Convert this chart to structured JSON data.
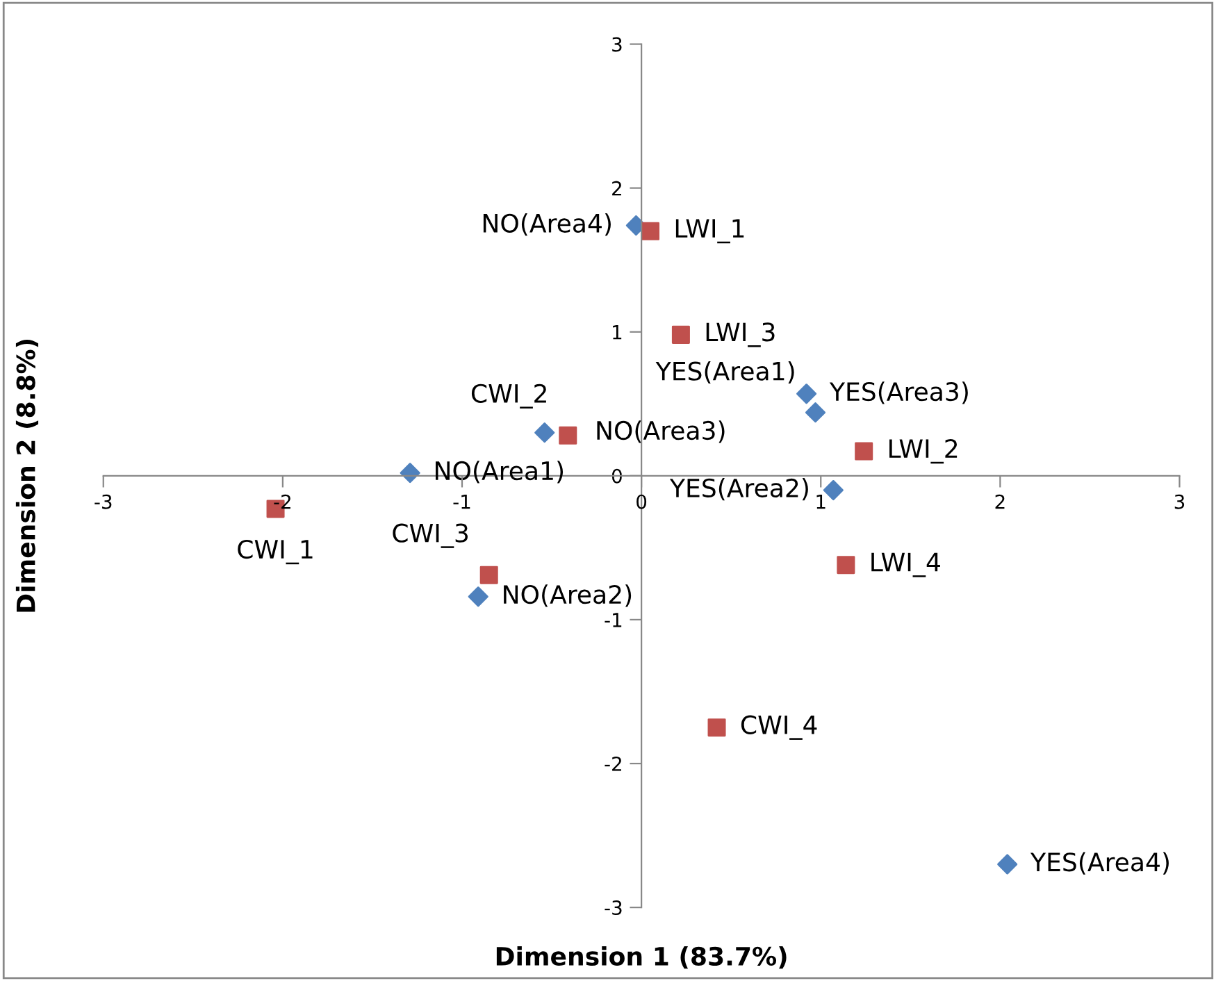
{
  "chart_data": {
    "type": "scatter",
    "xlabel": "Dimension 1 (83.7%)",
    "ylabel": "Dimension 2 (8.8%)",
    "xlim": [
      -3,
      3
    ],
    "ylim": [
      -3,
      3
    ],
    "xticks": [
      -3,
      -2,
      -1,
      0,
      1,
      2,
      3
    ],
    "yticks": [
      -3,
      -2,
      -1,
      0,
      1,
      2,
      3
    ],
    "grid": false,
    "legend": false,
    "series": [
      {
        "color": "#4f81bd",
        "marker": "diamond",
        "x": [
          -0.03,
          0.92,
          0.97,
          -0.54,
          -1.29,
          1.07,
          -0.91,
          2.04
        ],
        "values": [
          1.74,
          0.57,
          0.44,
          0.3,
          0.02,
          -0.1,
          -0.84,
          -2.7
        ]
      },
      {
        "color": "#c0504d",
        "marker": "square",
        "x": [
          0.05,
          0.22,
          -0.41,
          1.24,
          -2.04,
          -0.85,
          1.14,
          0.42
        ],
        "values": [
          1.7,
          0.98,
          0.28,
          0.17,
          -0.23,
          -0.69,
          -0.62,
          -1.75
        ]
      }
    ],
    "annotations": [
      {
        "text": "NO(Area4)",
        "x": -0.03,
        "y": 1.74
      },
      {
        "text": "YES(Area3)",
        "x": 0.92,
        "y": 0.57
      },
      {
        "text": "YES(Area1)",
        "x": 0.97,
        "y": 0.44
      },
      {
        "text": "NO(Area3)",
        "x": -0.54,
        "y": 0.3
      },
      {
        "text": "NO(Area1)",
        "x": -1.29,
        "y": 0.02
      },
      {
        "text": "YES(Area2)",
        "x": 1.07,
        "y": -0.1
      },
      {
        "text": "NO(Area2)",
        "x": -0.91,
        "y": -0.84
      },
      {
        "text": "YES(Area4)",
        "x": 2.04,
        "y": -2.7
      },
      {
        "text": "LWI_1",
        "x": 0.05,
        "y": 1.7
      },
      {
        "text": "LWI_3",
        "x": 0.22,
        "y": 0.98
      },
      {
        "text": "CWI_2",
        "x": -0.41,
        "y": 0.28
      },
      {
        "text": "LWI_2",
        "x": 1.24,
        "y": 0.17
      },
      {
        "text": "CWI_1",
        "x": -2.04,
        "y": -0.23
      },
      {
        "text": "CWI_3",
        "x": -0.85,
        "y": -0.69
      },
      {
        "text": "LWI_4",
        "x": 1.14,
        "y": -0.62
      },
      {
        "text": "CWI_4",
        "x": 0.42,
        "y": -1.75
      }
    ]
  }
}
